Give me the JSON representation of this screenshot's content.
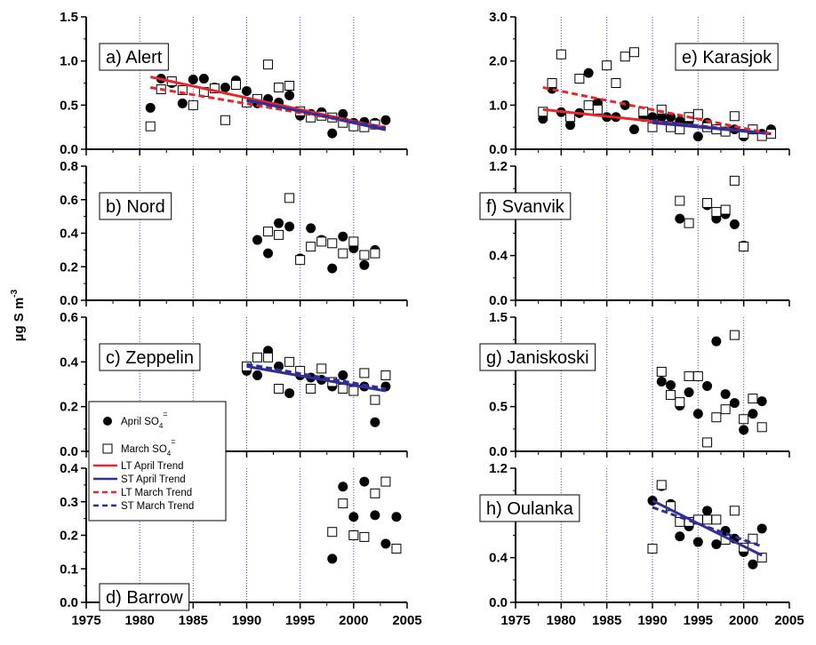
{
  "figure": {
    "ylabel_main": "µg S m",
    "ylabel_exp": "-3"
  },
  "legend": {
    "april": "April SO",
    "march": "March SO",
    "ion_sub": "4",
    "ion_sup": "=",
    "lt_april": "LT April Trend",
    "st_april": "ST April Trend",
    "lt_march": "LT March Trend",
    "st_march": "ST March Trend"
  },
  "colors": {
    "lt_trend": "#e8262b",
    "st_trend": "#2f2f96",
    "gridline": "#4a4ad0"
  },
  "chart_data": [
    {
      "type": "scatter",
      "label": "a) Alert",
      "xlim": [
        1975,
        2005
      ],
      "ylim": [
        0,
        1.5
      ],
      "yticks": [
        0,
        0.5,
        1.0,
        1.5
      ],
      "ytick_labels": [
        "0.0",
        "0.5",
        "1.0",
        "1.5"
      ],
      "series": [
        {
          "name": "April SO4=",
          "x": [
            1981,
            1982,
            1983,
            1984,
            1985,
            1986,
            1987,
            1988,
            1989,
            1990,
            1991,
            1992,
            1993,
            1994,
            1995,
            1996,
            1997,
            1998,
            1999,
            2000,
            2001,
            2002,
            2003
          ],
          "y": [
            0.47,
            0.8,
            0.75,
            0.52,
            0.79,
            0.8,
            0.7,
            0.7,
            0.78,
            0.66,
            0.52,
            0.57,
            0.53,
            0.61,
            0.38,
            0.4,
            0.42,
            0.18,
            0.4,
            0.3,
            0.31,
            0.3,
            0.33
          ]
        },
        {
          "name": "March SO4=",
          "x": [
            1981,
            1982,
            1983,
            1984,
            1985,
            1986,
            1987,
            1988,
            1989,
            1990,
            1991,
            1992,
            1993,
            1994,
            1995,
            1996,
            1997,
            1998,
            1999,
            2000,
            2001,
            2002
          ],
          "y": [
            0.26,
            0.68,
            0.77,
            0.67,
            0.5,
            0.65,
            0.69,
            0.33,
            0.73,
            0.53,
            0.57,
            0.96,
            0.7,
            0.72,
            0.43,
            0.36,
            0.38,
            0.36,
            0.3,
            0.26,
            0.25,
            0.28
          ]
        },
        {
          "name": "LT April Trend",
          "x": [
            1981,
            2003
          ],
          "y": [
            0.82,
            0.24
          ]
        },
        {
          "name": "ST April Trend",
          "x": [
            1990,
            2003
          ],
          "y": [
            0.56,
            0.22
          ]
        },
        {
          "name": "LT March Trend",
          "x": [
            1981,
            2003
          ],
          "y": [
            0.7,
            0.25
          ]
        },
        {
          "name": "ST March Trend",
          "x": [
            1990,
            2003
          ],
          "y": [
            0.55,
            0.24
          ]
        }
      ]
    },
    {
      "type": "scatter",
      "label": "b) Nord",
      "xlim": [
        1975,
        2005
      ],
      "ylim": [
        0,
        0.8
      ],
      "yticks": [
        0,
        0.2,
        0.4,
        0.6,
        0.8
      ],
      "ytick_labels": [
        "0.0",
        "0.2",
        "0.4",
        "0.6",
        "0.8"
      ],
      "series": [
        {
          "name": "April SO4=",
          "x": [
            1991,
            1992,
            1993,
            1994,
            1995,
            1996,
            1997,
            1998,
            1999,
            2000,
            2001,
            2002
          ],
          "y": [
            0.36,
            0.28,
            0.46,
            0.44,
            0.25,
            0.43,
            0.36,
            0.19,
            0.38,
            0.31,
            0.21,
            0.3
          ]
        },
        {
          "name": "March SO4=",
          "x": [
            1992,
            1993,
            1994,
            1995,
            1996,
            1997,
            1998,
            1999,
            2000,
            2001,
            2002
          ],
          "y": [
            0.41,
            0.39,
            0.61,
            0.24,
            0.32,
            0.35,
            0.34,
            0.28,
            0.35,
            0.27,
            0.28
          ]
        }
      ]
    },
    {
      "type": "scatter",
      "label": "c) Zeppelin",
      "xlim": [
        1975,
        2005
      ],
      "ylim": [
        0,
        0.6
      ],
      "yticks": [
        0,
        0.2,
        0.4,
        0.6
      ],
      "ytick_labels": [
        "0.0",
        "0.2",
        "0.4",
        "0.6"
      ],
      "series": [
        {
          "name": "April SO4=",
          "x": [
            1990,
            1991,
            1992,
            1993,
            1994,
            1995,
            1996,
            1997,
            1998,
            1999,
            2000,
            2001,
            2002,
            2003
          ],
          "y": [
            0.36,
            0.34,
            0.45,
            0.38,
            0.26,
            0.34,
            0.33,
            0.32,
            0.29,
            0.34,
            0.28,
            0.29,
            0.13,
            0.29
          ]
        },
        {
          "name": "March SO4=",
          "x": [
            1990,
            1991,
            1992,
            1993,
            1994,
            1995,
            1996,
            1997,
            1998,
            1999,
            2000,
            2001,
            2002,
            2003
          ],
          "y": [
            0.38,
            0.42,
            0.42,
            0.28,
            0.4,
            0.36,
            0.28,
            0.37,
            0.31,
            0.28,
            0.27,
            0.35,
            0.23,
            0.34
          ]
        },
        {
          "name": "ST April Trend",
          "x": [
            1990,
            2003
          ],
          "y": [
            0.38,
            0.27
          ]
        },
        {
          "name": "ST March Trend",
          "x": [
            1990,
            2003
          ],
          "y": [
            0.39,
            0.28
          ]
        }
      ]
    },
    {
      "type": "scatter",
      "label": "d) Barrow",
      "xlim": [
        1975,
        2005
      ],
      "ylim": [
        0,
        0.4
      ],
      "yticks": [
        0,
        0.1,
        0.2,
        0.3,
        0.4
      ],
      "ytick_labels": [
        "0.0",
        "0.1",
        "0.2",
        "0.3",
        "0.4"
      ],
      "series": [
        {
          "name": "April SO4=",
          "x": [
            1998,
            1999,
            2000,
            2001,
            2002,
            2003,
            2004
          ],
          "y": [
            0.13,
            0.345,
            0.255,
            0.36,
            0.26,
            0.175,
            0.255
          ]
        },
        {
          "name": "March SO4=",
          "x": [
            1998,
            1999,
            2000,
            2001,
            2002,
            2003,
            2004
          ],
          "y": [
            0.21,
            0.295,
            0.2,
            0.195,
            0.325,
            0.36,
            0.16
          ]
        }
      ]
    },
    {
      "type": "scatter",
      "label": "e) Karasjok",
      "xlim": [
        1975,
        2005
      ],
      "ylim": [
        0,
        3.0
      ],
      "yticks": [
        0,
        1.0,
        2.0,
        3.0
      ],
      "ytick_labels": [
        "0.0",
        "1.0",
        "2.0",
        "3.0"
      ],
      "series": [
        {
          "name": "April SO4=",
          "x": [
            1978,
            1979,
            1980,
            1981,
            1982,
            1983,
            1984,
            1985,
            1986,
            1987,
            1988,
            1989,
            1990,
            1991,
            1992,
            1993,
            1994,
            1995,
            1996,
            1997,
            1998,
            1999,
            2000,
            2001,
            2002,
            2003
          ],
          "y": [
            0.69,
            1.37,
            0.84,
            0.55,
            0.82,
            1.73,
            1.05,
            0.73,
            0.73,
            1.0,
            0.45,
            0.73,
            0.73,
            0.73,
            0.73,
            0.64,
            0.64,
            0.29,
            0.6,
            0.45,
            0.4,
            0.45,
            0.29,
            0.45,
            0.35,
            0.45
          ]
        },
        {
          "name": "March SO4=",
          "x": [
            1978,
            1979,
            1980,
            1981,
            1982,
            1983,
            1984,
            1985,
            1986,
            1987,
            1988,
            1989,
            1990,
            1991,
            1992,
            1993,
            1994,
            1995,
            1996,
            1997,
            1998,
            1999,
            2000,
            2001,
            2002,
            2003
          ],
          "y": [
            0.85,
            1.5,
            2.15,
            0.73,
            1.6,
            1.0,
            0.9,
            1.9,
            1.5,
            2.1,
            2.2,
            0.85,
            0.5,
            0.9,
            0.5,
            0.45,
            0.73,
            0.8,
            0.5,
            0.45,
            0.4,
            0.75,
            0.35,
            0.45,
            0.3,
            0.35
          ]
        },
        {
          "name": "LT April Trend",
          "x": [
            1978,
            2003
          ],
          "y": [
            0.9,
            0.35
          ]
        },
        {
          "name": "ST April Trend",
          "x": [
            1990,
            2003
          ],
          "y": [
            0.6,
            0.35
          ]
        },
        {
          "name": "LT March Trend",
          "x": [
            1978,
            2003
          ],
          "y": [
            1.4,
            0.35
          ]
        },
        {
          "name": "ST March Trend",
          "x": [
            1990,
            2003
          ],
          "y": [
            0.65,
            0.35
          ]
        }
      ]
    },
    {
      "type": "scatter",
      "label": "f) Svanvik",
      "xlim": [
        1975,
        2005
      ],
      "ylim": [
        0,
        1.2
      ],
      "yticks": [
        0,
        0.4,
        0.8,
        1.2
      ],
      "ytick_labels": [
        "0.0",
        "0.4",
        "0.8",
        "1.2"
      ],
      "series": [
        {
          "name": "April SO4=",
          "x": [
            1993,
            1996,
            1997,
            1998,
            1999,
            2000
          ],
          "y": [
            0.73,
            0.85,
            0.73,
            0.77,
            0.68,
            0.49
          ]
        },
        {
          "name": "March SO4=",
          "x": [
            1993,
            1994,
            1996,
            1997,
            1998,
            1999,
            2000
          ],
          "y": [
            0.89,
            0.69,
            0.87,
            0.79,
            0.81,
            1.07,
            0.48
          ]
        }
      ]
    },
    {
      "type": "scatter",
      "label": "g) Janiskoski",
      "xlim": [
        1975,
        2005
      ],
      "ylim": [
        0,
        1.5
      ],
      "yticks": [
        0,
        0.5,
        1.0,
        1.5
      ],
      "ytick_labels": [
        "0.0",
        "0.5",
        "1.0",
        "1.5"
      ],
      "series": [
        {
          "name": "April SO4=",
          "x": [
            1991,
            1992,
            1993,
            1994,
            1995,
            1996,
            1997,
            1998,
            1999,
            2000,
            2001,
            2002
          ],
          "y": [
            0.78,
            0.74,
            0.51,
            0.66,
            0.42,
            0.73,
            1.23,
            0.64,
            0.54,
            0.24,
            0.42,
            0.56
          ]
        },
        {
          "name": "March SO4=",
          "x": [
            1991,
            1992,
            1993,
            1994,
            1995,
            1996,
            1997,
            1998,
            1999,
            2000,
            2001,
            2002
          ],
          "y": [
            0.89,
            0.63,
            0.55,
            0.84,
            0.84,
            0.1,
            0.38,
            0.47,
            1.3,
            0.36,
            0.59,
            0.27
          ]
        }
      ]
    },
    {
      "type": "scatter",
      "label": "h) Oulanka",
      "xlim": [
        1975,
        2005
      ],
      "ylim": [
        0,
        1.2
      ],
      "yticks": [
        0,
        0.4,
        0.8,
        1.2
      ],
      "ytick_labels": [
        "0.0",
        "0.4",
        "0.8",
        "1.2"
      ],
      "xticks": [
        1975,
        1980,
        1985,
        1990,
        1995,
        2000,
        2005
      ],
      "series": [
        {
          "name": "April SO4=",
          "x": [
            1990,
            1991,
            1992,
            1993,
            1994,
            1995,
            1996,
            1997,
            1998,
            1999,
            2000,
            2001,
            2002
          ],
          "y": [
            0.91,
            1.04,
            0.88,
            0.59,
            0.68,
            0.54,
            0.82,
            0.52,
            0.64,
            0.57,
            0.45,
            0.34,
            0.66
          ]
        },
        {
          "name": "March SO4=",
          "x": [
            1990,
            1991,
            1992,
            1993,
            1994,
            1995,
            1996,
            1997,
            1998,
            1999,
            2000,
            2001,
            2002
          ],
          "y": [
            0.48,
            1.05,
            0.86,
            0.72,
            0.72,
            0.74,
            0.74,
            0.74,
            0.56,
            0.82,
            0.49,
            0.57,
            0.4
          ]
        },
        {
          "name": "ST April Trend",
          "x": [
            1990,
            2002
          ],
          "y": [
            0.91,
            0.42
          ]
        },
        {
          "name": "ST March Trend",
          "x": [
            1990,
            2002
          ],
          "y": [
            0.85,
            0.5
          ]
        }
      ]
    }
  ]
}
